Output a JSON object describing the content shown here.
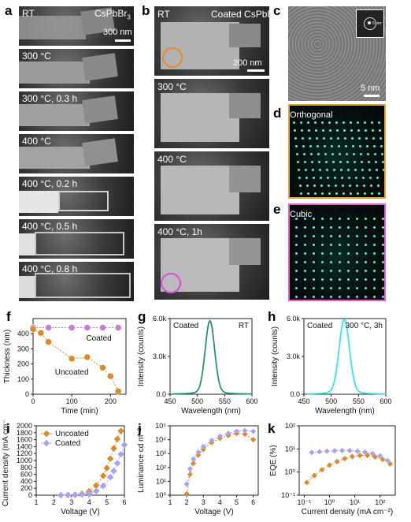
{
  "panel_labels": {
    "a": "a",
    "b": "b",
    "c": "c",
    "d": "d",
    "e": "e",
    "f": "f",
    "g": "g",
    "h": "h",
    "i": "i",
    "j": "j",
    "k": "k"
  },
  "colors": {
    "uncoated": "#d98b2b",
    "coated_f": "#c97bd9",
    "coated_iv": "#a9a2f0",
    "spectrum_g": "#2a8f7f",
    "spectrum_h": "#35e6e6",
    "orthogonal_frame": "#e1a23a",
    "cubic_frame": "#e05ad8",
    "circle_orange": "#e58a2b",
    "circle_magenta": "#d64fd6"
  },
  "panel_a": {
    "frames": [
      {
        "caption": "RT",
        "material": "CsPbBr",
        "sub": "3",
        "scale": "300 nm"
      },
      {
        "caption": "300 °C"
      },
      {
        "caption": "300 °C, 0.3 h"
      },
      {
        "caption": "400 °C"
      },
      {
        "caption": "400 °C, 0.2 h"
      },
      {
        "caption": "400 °C, 0.5 h"
      },
      {
        "caption": "400 °C, 0.8 h"
      }
    ]
  },
  "panel_b": {
    "frames": [
      {
        "caption": "RT",
        "material": "Coated CsPbBr",
        "sub": "3",
        "scale": "200 nm"
      },
      {
        "caption": "300 °C"
      },
      {
        "caption": "400 °C"
      },
      {
        "caption": "400 °C, 1h"
      }
    ]
  },
  "panel_c": {
    "scale": "5 nm",
    "inset_scale": "5 nm⁻¹"
  },
  "panel_d": {
    "label": "Orthogonal",
    "scale": "3 nm⁻¹"
  },
  "panel_e": {
    "label": "Cubic",
    "scale": "3 nm⁻¹"
  },
  "chart_data": [
    {
      "id": "f",
      "type": "scatter",
      "xlabel": "Time (min)",
      "ylabel": "Thickness (nm)",
      "xlim": [
        0,
        240
      ],
      "ylim": [
        0,
        500
      ],
      "xticks": [
        0,
        100,
        200
      ],
      "yticks": [
        0,
        100,
        200,
        300,
        400
      ],
      "annotations": [
        "Coated",
        "Uncoated"
      ],
      "series": [
        {
          "color_key": "coated_f",
          "x": [
            0,
            40,
            100,
            140,
            180,
            220
          ],
          "y": [
            440,
            440,
            440,
            440,
            440,
            440
          ]
        },
        {
          "color_key": "uncoated",
          "x": [
            0,
            20,
            40,
            100,
            140,
            180,
            200,
            220
          ],
          "y": [
            430,
            405,
            345,
            235,
            245,
            175,
            120,
            20
          ]
        }
      ]
    },
    {
      "id": "g",
      "type": "line",
      "xlabel": "Wavelength (nm)",
      "ylabel": "Intensity (counts)",
      "xlim": [
        450,
        600
      ],
      "ylim": [
        0,
        6000
      ],
      "xticks": [
        450,
        500,
        550,
        600
      ],
      "ytick_labels": [
        "0.0",
        "3.0k",
        "6.0k"
      ],
      "yticks": [
        0,
        3000,
        6000
      ],
      "annotations": [
        "Coated",
        "RT"
      ],
      "peak": 523,
      "fwhm": 20,
      "amplitude": 5500,
      "color_key": "spectrum_g"
    },
    {
      "id": "h",
      "type": "line",
      "xlabel": "Wavelength (nm)",
      "ylabel": "Intensity (counts)",
      "xlim": [
        450,
        600
      ],
      "ylim": [
        0,
        6000
      ],
      "xticks": [
        450,
        500,
        550,
        600
      ],
      "ytick_labels": [
        "0.0",
        "3.0k",
        "6.0k"
      ],
      "yticks": [
        0,
        3000,
        6000
      ],
      "annotations": [
        "Coated",
        "300 °C, 3h"
      ],
      "peak": 524,
      "fwhm": 22,
      "amplitude": 5600,
      "color_key": "spectrum_h"
    },
    {
      "id": "i",
      "type": "line",
      "xlabel": "Voltage (V)",
      "ylabel": "Current density (mA cm⁻²)",
      "xlim": [
        1,
        6
      ],
      "ylim": [
        0,
        2000
      ],
      "xticks": [
        1,
        2,
        3,
        4,
        5,
        6
      ],
      "yticks": [
        0,
        200,
        400,
        600,
        800,
        1000,
        1200,
        1400,
        1600,
        1800,
        2000
      ],
      "legend": [
        "Uncoated",
        "Coated"
      ],
      "series": [
        {
          "name": "Uncoated",
          "color_key": "uncoated",
          "x": [
            2.4,
            2.8,
            3.2,
            3.6,
            4.0,
            4.4,
            4.8,
            5.0,
            5.2,
            5.4,
            5.6,
            5.8
          ],
          "y": [
            0,
            5,
            15,
            40,
            110,
            280,
            560,
            780,
            1050,
            1350,
            1620,
            1850
          ]
        },
        {
          "name": "Coated",
          "color_key": "coated_iv",
          "x": [
            2.4,
            2.8,
            3.2,
            3.6,
            4.0,
            4.4,
            4.8,
            5.2,
            5.4,
            5.6,
            5.8,
            6.0
          ],
          "y": [
            0,
            3,
            8,
            20,
            50,
            120,
            270,
            520,
            700,
            920,
            1180,
            1450
          ]
        }
      ]
    },
    {
      "id": "j",
      "type": "line",
      "scale": "log",
      "xlabel": "Voltage (V)",
      "ylabel": "Luminance cd m⁻²",
      "xlim": [
        1,
        6.3
      ],
      "ylim_exp": [
        0,
        5
      ],
      "xticks": [
        1,
        2,
        3,
        4,
        5,
        6
      ],
      "yticks": [
        "10⁰",
        "10¹",
        "10²",
        "10³",
        "10⁴",
        "10⁵"
      ],
      "series": [
        {
          "color_key": "uncoated",
          "x": [
            2.0,
            2.2,
            2.4,
            2.7,
            3.0,
            3.5,
            4.0,
            4.5,
            5.0,
            5.5,
            6.0
          ],
          "y_exp": [
            0.1,
            1.5,
            2.3,
            2.9,
            3.3,
            3.8,
            4.1,
            4.3,
            4.45,
            4.4,
            4.0
          ]
        },
        {
          "color_key": "coated_iv",
          "x": [
            2.0,
            2.2,
            2.4,
            2.7,
            3.0,
            3.5,
            4.0,
            4.5,
            5.0,
            5.5,
            6.0
          ],
          "y_exp": [
            0.8,
            1.9,
            2.6,
            3.1,
            3.5,
            3.95,
            4.25,
            4.45,
            4.6,
            4.65,
            4.6
          ]
        }
      ]
    },
    {
      "id": "k",
      "type": "line",
      "scale": "log-log",
      "xlabel": "Current density (mA cm⁻²)",
      "ylabel": "EQE (%)",
      "xlim_exp": [
        -1.2,
        2.6
      ],
      "ylim_exp": [
        -1,
        2
      ],
      "xticks": [
        "10⁻¹",
        "10⁰",
        "10¹",
        "10²"
      ],
      "xtick_exp": [
        -1,
        0,
        1,
        2
      ],
      "yticks": [
        "10⁻¹",
        "10⁰",
        "10¹",
        "10²"
      ],
      "series": [
        {
          "color_key": "uncoated",
          "x_exp": [
            -0.9,
            -0.6,
            -0.3,
            0.0,
            0.3,
            0.6,
            0.9,
            1.2,
            1.5,
            1.8,
            2.1,
            2.4
          ],
          "y_exp": [
            -0.45,
            -0.15,
            0.1,
            0.3,
            0.45,
            0.58,
            0.67,
            0.72,
            0.72,
            0.66,
            0.55,
            0.35
          ]
        },
        {
          "color_key": "coated_iv",
          "x_exp": [
            -0.7,
            -0.4,
            -0.1,
            0.2,
            0.5,
            0.8,
            1.1,
            1.4,
            1.7,
            2.0,
            2.3
          ],
          "y_exp": [
            0.85,
            0.88,
            0.9,
            0.92,
            0.93,
            0.93,
            0.9,
            0.86,
            0.8,
            0.7,
            0.5
          ]
        }
      ]
    }
  ]
}
